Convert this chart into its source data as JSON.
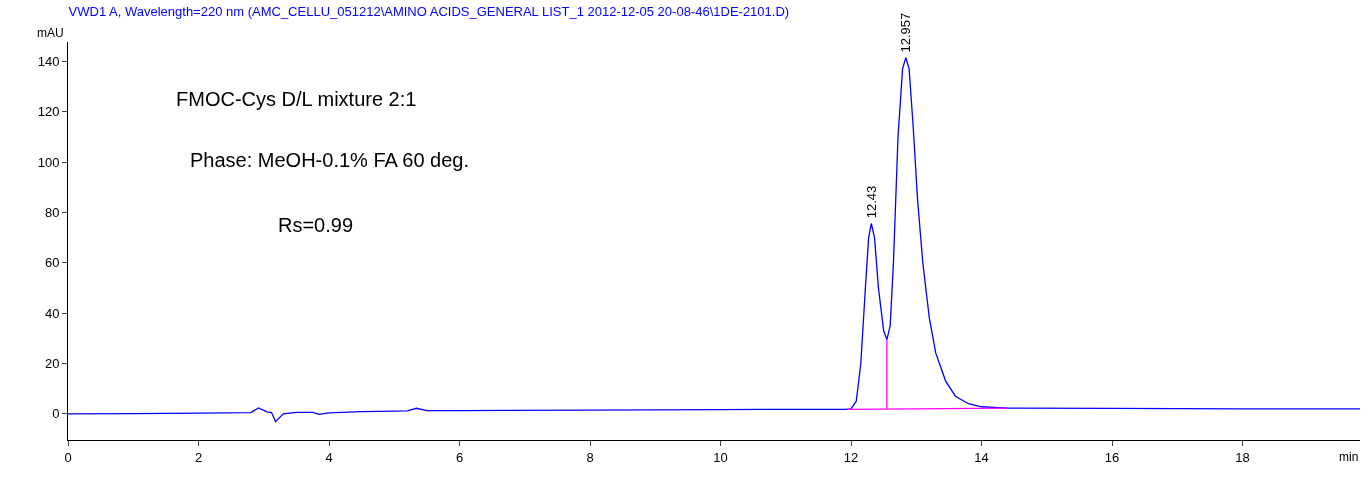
{
  "chart_data": {
    "type": "line",
    "title": "VWD1 A, Wavelength=220 nm (AMC_CELLU_051212\\AMINO ACIDS_GENERAL LIST_1 2012-12-05 20-08-46\\1DE-2101.D)",
    "xlabel": "min",
    "ylabel": "mAU",
    "xlim": [
      0,
      19.8
    ],
    "xticks": [
      0,
      2,
      4,
      6,
      8,
      10,
      12,
      14,
      16,
      18
    ],
    "ylim": [
      -10.4,
      147.7
    ],
    "yticks": [
      0,
      20,
      40,
      60,
      80,
      100,
      120,
      140
    ],
    "marker": "none",
    "line_style": "solid",
    "series": [
      {
        "color": "#0000ff",
        "x": [
          0,
          1,
          2,
          2.8,
          2.92,
          3.05,
          3.12,
          3.18,
          3.3,
          3.5,
          3.75,
          3.85,
          4,
          4.5,
          5,
          5.2,
          5.34,
          5.5,
          6,
          8,
          10,
          11.9,
          12.0,
          12.08,
          12.15,
          12.22,
          12.27,
          12.31,
          12.36,
          12.42,
          12.5,
          12.55,
          12.6,
          12.65,
          12.72,
          12.79,
          12.84,
          12.89,
          12.95,
          13.02,
          13.1,
          13.2,
          13.3,
          13.45,
          13.6,
          13.8,
          14.0,
          14.4,
          16,
          18,
          19.8
        ],
        "values": [
          0,
          0.1,
          0.3,
          0.5,
          2.3,
          0.8,
          0.5,
          -3.1,
          0,
          0.6,
          0.6,
          -0.2,
          0.4,
          0.9,
          1.1,
          1.2,
          2.2,
          1.3,
          1.3,
          1.5,
          1.7,
          1.8,
          2.0,
          5,
          20,
          50,
          70,
          75.6,
          70,
          50,
          33,
          29.5,
          35,
          60,
          110,
          137,
          141.5,
          137,
          115,
          85,
          60,
          38,
          24,
          13,
          7,
          4,
          2.8,
          2.3,
          2.2,
          2.0,
          2.0
        ]
      },
      {
        "color": "#ff00ff",
        "x": [
          11.95,
          14.4
        ],
        "values": [
          1.8,
          2.3
        ]
      },
      {
        "color": "#ff00ff",
        "x": [
          12.55,
          12.55
        ],
        "values": [
          1.9,
          29.5
        ]
      }
    ],
    "annotations": [
      {
        "text": "12.43",
        "x": 12.31,
        "y": 75.6
      },
      {
        "text": "12.957",
        "x": 12.84,
        "y": 141.5
      },
      "FMOC-Cys D/L mixture 2:1",
      "Phase: MeOH-0.1% FA 60 deg.",
      "Rs=0.99"
    ]
  }
}
